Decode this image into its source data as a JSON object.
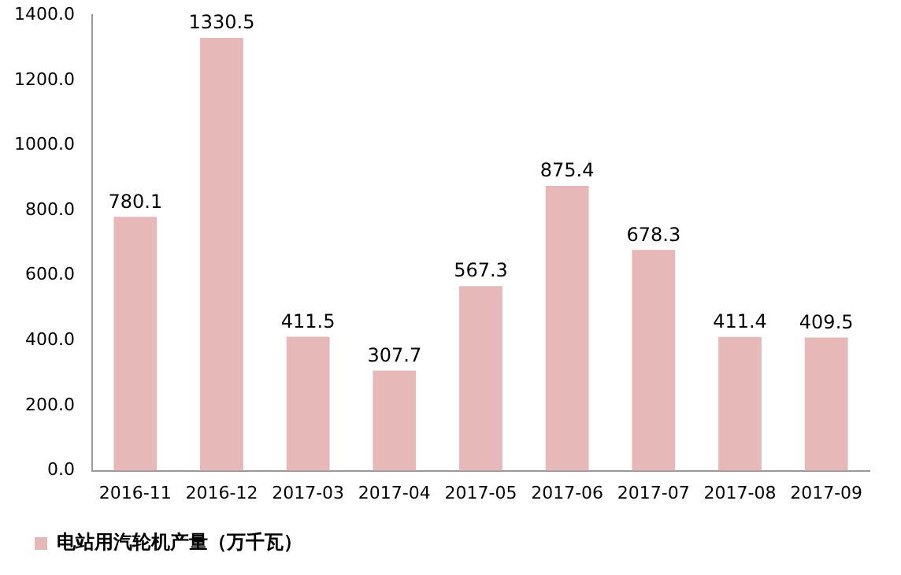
{
  "chart_data": {
    "type": "bar",
    "categories": [
      "2016-11",
      "2016-12",
      "2017-03",
      "2017-04",
      "2017-05",
      "2017-06",
      "2017-07",
      "2017-08",
      "2017-09"
    ],
    "series": [
      {
        "name": "电站用汽轮机产量（万千瓦）",
        "color": "#e6b9b8",
        "values": [
          780.1,
          1330.5,
          411.5,
          307.7,
          567.3,
          875.4,
          678.3,
          411.4,
          409.5
        ]
      }
    ],
    "ylim": [
      0,
      1400
    ],
    "yticks": [
      {
        "value": 0,
        "label": "0.0"
      },
      {
        "value": 200,
        "label": "200.0"
      },
      {
        "value": 400,
        "label": "400.0"
      },
      {
        "value": 600,
        "label": "600.0"
      },
      {
        "value": 800,
        "label": "800.0"
      },
      {
        "value": 1000,
        "label": "1000.0"
      },
      {
        "value": 1200,
        "label": "1200.0"
      },
      {
        "value": 1400,
        "label": "1400.0"
      }
    ],
    "grid": false,
    "legend": "bottom left",
    "data_labels": true
  }
}
